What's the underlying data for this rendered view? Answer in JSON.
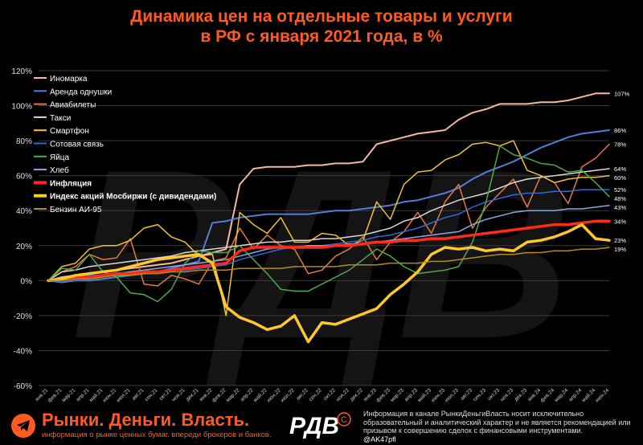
{
  "title": {
    "line1": "Динамика цен на отдельные товары и услуги",
    "line2": "в РФ с января 2021 года, в %"
  },
  "footer": {
    "brand_name": "Рынки. Деньги. Власть.",
    "brand_sub": "информация о рынке ценных бумаг. вперeди брокеров и банков.",
    "logo_text": "РДВ",
    "disclaimer": "Информация в канале РынкиДеньгиВласть носит исключительно образовательный и аналитический характер и не является рекомендацией или призывом к совершению сделок с финансовыми инструментами.",
    "handle": "@AK47pfl"
  },
  "watermark": "РДВ",
  "colors": {
    "title": "#ff5a1f",
    "background": "#000000"
  },
  "chart_data": {
    "type": "line",
    "title": "Динамика цен на отдельные товары и услуги в РФ с января 2021 года, в %",
    "ylim": [
      -60,
      120
    ],
    "yticks": [
      "-60%",
      "-40%",
      "-20%",
      "0%",
      "20%",
      "40%",
      "60%",
      "80%",
      "100%",
      "120%"
    ],
    "grid": true,
    "legend_position": "top-left",
    "x": [
      "янв.21",
      "фев.21",
      "мар.21",
      "апр.21",
      "май.21",
      "июн.21",
      "июл.21",
      "авг.21",
      "сен.21",
      "окт.21",
      "ноя.21",
      "дек.21",
      "янв.22",
      "фев.22",
      "мар.22",
      "апр.22",
      "май.22",
      "июн.22",
      "июл.22",
      "авг.22",
      "сен.22",
      "окт.22",
      "ноя.22",
      "дек.22",
      "янв.23",
      "фев.23",
      "мар.23",
      "апр.23",
      "май.23",
      "июн.23",
      "июл.23",
      "авг.23",
      "сен.23",
      "окт.23",
      "ноя.23",
      "дек.23",
      "янв.24",
      "фев.24",
      "мар.24",
      "апр.24",
      "май.24",
      "июн.24"
    ],
    "series": [
      {
        "name": "Иномарка",
        "color": "#f4b7a0",
        "width": 2,
        "end_label": "107%",
        "values": [
          0,
          2,
          3,
          4,
          5,
          6,
          7,
          8,
          9,
          10,
          12,
          14,
          16,
          18,
          55,
          64,
          65,
          65,
          65,
          66,
          66,
          67,
          67,
          68,
          78,
          80,
          82,
          84,
          85,
          86,
          92,
          96,
          98,
          101,
          101,
          101,
          102,
          102,
          103,
          105,
          107,
          107
        ]
      },
      {
        "name": "Аренда однушки",
        "color": "#4f7fd6",
        "width": 2,
        "end_label": "86%",
        "values": [
          0,
          -1,
          0,
          0,
          1,
          2,
          3,
          4,
          5,
          7,
          9,
          11,
          33,
          34,
          36,
          37,
          38,
          38,
          38,
          38,
          39,
          40,
          40,
          41,
          42,
          43,
          45,
          46,
          48,
          50,
          53,
          58,
          62,
          65,
          68,
          72,
          76,
          79,
          82,
          84,
          85,
          86
        ]
      },
      {
        "name": "Авиабилеты",
        "color": "#e67a3c",
        "width": 1.5,
        "end_label": "78%",
        "values": [
          0,
          5,
          8,
          15,
          12,
          13,
          24,
          -2,
          -3,
          3,
          1,
          -2,
          11,
          13,
          30,
          18,
          26,
          20,
          18,
          4,
          6,
          14,
          18,
          25,
          12,
          22,
          28,
          39,
          27,
          45,
          55,
          30,
          42,
          50,
          58,
          42,
          60,
          56,
          44,
          65,
          70,
          78
        ]
      },
      {
        "name": "Такси",
        "color": "#d9d9d9",
        "width": 1.5,
        "end_label": "64%",
        "values": [
          0,
          5,
          6,
          8,
          9,
          10,
          11,
          12,
          13,
          14,
          16,
          17,
          18,
          19,
          20,
          21,
          22,
          22,
          23,
          23,
          24,
          24,
          25,
          26,
          28,
          30,
          34,
          36,
          40,
          43,
          46,
          48,
          50,
          53,
          56,
          58,
          59,
          60,
          61,
          62,
          63,
          64
        ]
      },
      {
        "name": "Смартфон",
        "color": "#f2c12e",
        "width": 1.5,
        "end_label": "60%",
        "values": [
          0,
          8,
          10,
          18,
          20,
          20,
          23,
          30,
          32,
          25,
          22,
          14,
          15,
          -20,
          39,
          32,
          27,
          36,
          22,
          22,
          27,
          26,
          20,
          23,
          45,
          35,
          55,
          62,
          63,
          69,
          72,
          78,
          79,
          77,
          80,
          63,
          60,
          56,
          58,
          59,
          59,
          60
        ]
      },
      {
        "name": "Сотовая связь",
        "color": "#2d6ad6",
        "width": 1.5,
        "end_label": "52%",
        "values": [
          0,
          1,
          2,
          3,
          3,
          4,
          4,
          5,
          5,
          6,
          6,
          7,
          8,
          9,
          12,
          14,
          16,
          18,
          19,
          20,
          20,
          21,
          22,
          23,
          25,
          26,
          28,
          30,
          33,
          36,
          38,
          42,
          45,
          47,
          49,
          50,
          50,
          51,
          51,
          52,
          52,
          52
        ]
      },
      {
        "name": "Яйца",
        "color": "#4fa84a",
        "width": 1.5,
        "end_label": "48%",
        "values": [
          0,
          7,
          6,
          15,
          5,
          2,
          -7,
          -8,
          -12,
          -5,
          10,
          17,
          16,
          16,
          20,
          12,
          4,
          -5,
          -6,
          -6,
          -2,
          2,
          6,
          12,
          18,
          14,
          8,
          4,
          5,
          6,
          8,
          22,
          45,
          77,
          72,
          70,
          67,
          66,
          62,
          63,
          56,
          48
        ]
      },
      {
        "name": "Хлеб",
        "color": "#8ba8de",
        "width": 1.5,
        "end_label": "43%",
        "values": [
          0,
          1,
          1,
          2,
          3,
          4,
          5,
          6,
          7,
          8,
          9,
          10,
          11,
          12,
          14,
          16,
          18,
          19,
          19,
          20,
          20,
          20,
          21,
          21,
          22,
          23,
          24,
          25,
          26,
          27,
          28,
          32,
          35,
          37,
          39,
          40,
          40,
          40,
          41,
          41,
          42,
          43
        ]
      },
      {
        "name": "Инфляция",
        "color": "#ff2a1a",
        "width": 3.5,
        "end_label": "34%",
        "values": [
          0,
          1,
          2,
          2,
          3,
          4,
          4,
          5,
          5,
          6,
          7,
          8,
          9,
          10,
          17,
          19,
          19,
          19,
          19,
          19,
          19,
          20,
          20,
          21,
          22,
          22,
          23,
          23,
          24,
          24,
          25,
          26,
          27,
          28,
          29,
          30,
          31,
          32,
          32,
          33,
          34,
          34
        ]
      },
      {
        "name": "Индекс акций Мосбиржи (с дивидендами)",
        "color": "#ffc72c",
        "width": 3.5,
        "end_label": "23%",
        "values": [
          0,
          1,
          3,
          4,
          5,
          6,
          8,
          10,
          12,
          13,
          14,
          15,
          10,
          -15,
          -21,
          -24,
          -28,
          -26,
          -20,
          -35,
          -24,
          -25,
          -22,
          -19,
          -16,
          -8,
          -2,
          5,
          15,
          19,
          18,
          19,
          17,
          18,
          17,
          22,
          23,
          25,
          28,
          32,
          24,
          23
        ]
      },
      {
        "name": "Бензин АИ-95",
        "color": "#b58a1a",
        "width": 1.5,
        "end_label": "19%",
        "values": [
          0,
          0,
          1,
          1,
          2,
          3,
          3,
          4,
          4,
          5,
          5,
          6,
          6,
          6,
          7,
          7,
          7,
          7,
          8,
          8,
          8,
          8,
          9,
          9,
          9,
          10,
          10,
          10,
          11,
          11,
          12,
          13,
          14,
          15,
          15,
          16,
          16,
          17,
          17,
          18,
          18,
          19
        ]
      }
    ]
  }
}
